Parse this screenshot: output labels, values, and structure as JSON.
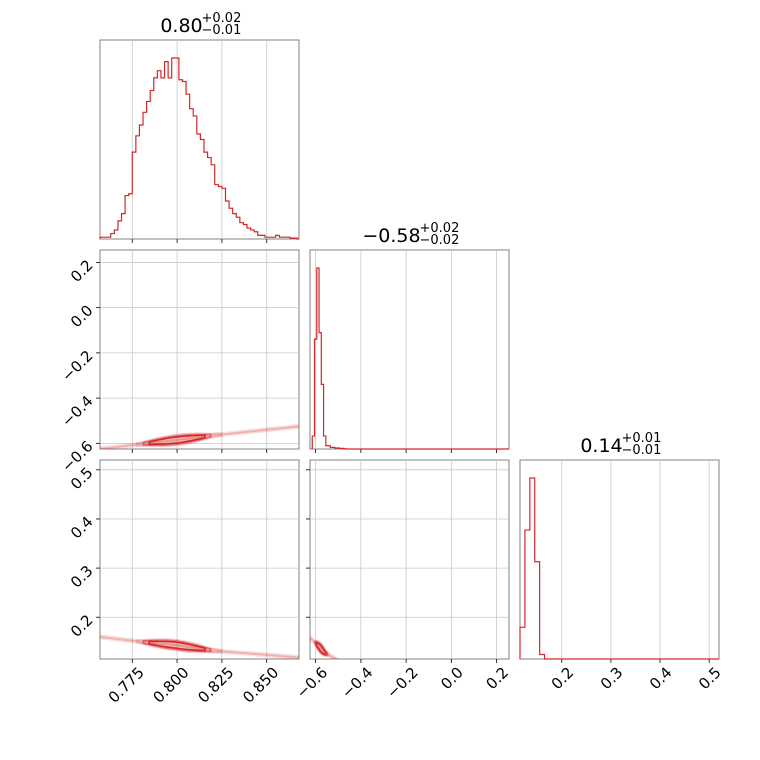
{
  "chart_data": {
    "type": "corner",
    "series_color": "#d62728",
    "grid": true,
    "parameters": [
      {
        "value": "0.80",
        "plus": "+0.02",
        "minus": "−0.01",
        "range": [
          0.757,
          0.868
        ]
      },
      {
        "value": "−0.58",
        "plus": "+0.02",
        "minus": "−0.02",
        "range": [
          -0.625,
          0.255
        ]
      },
      {
        "value": "0.14",
        "plus": "+0.01",
        "minus": "−0.01",
        "range": [
          0.115,
          0.52
        ]
      }
    ],
    "ticks": {
      "p0": {
        "values": [
          0.775,
          0.8,
          0.825,
          0.85
        ],
        "labels": [
          "0.775",
          "0.800",
          "0.825",
          "0.850"
        ]
      },
      "p1": {
        "values": [
          -0.6,
          -0.4,
          -0.2,
          0.0,
          0.2
        ],
        "labels": [
          "−0.6",
          "−0.4",
          "−0.2",
          "0.0",
          "0.2"
        ]
      },
      "p2": {
        "values": [
          0.2,
          0.3,
          0.4,
          0.5
        ],
        "labels": [
          "0.2",
          "0.3",
          "0.4",
          "0.5"
        ]
      }
    },
    "histograms": [
      {
        "param": 0,
        "edges": [
          0.757,
          0.759,
          0.761,
          0.763,
          0.765,
          0.767,
          0.769,
          0.771,
          0.773,
          0.775,
          0.777,
          0.779,
          0.781,
          0.783,
          0.785,
          0.787,
          0.789,
          0.791,
          0.793,
          0.795,
          0.797,
          0.799,
          0.801,
          0.803,
          0.805,
          0.807,
          0.809,
          0.811,
          0.813,
          0.815,
          0.817,
          0.819,
          0.821,
          0.823,
          0.825,
          0.827,
          0.829,
          0.831,
          0.833,
          0.835,
          0.837,
          0.839,
          0.841,
          0.843,
          0.845,
          0.847,
          0.849,
          0.851,
          0.853,
          0.855,
          0.857,
          0.859,
          0.861,
          0.863,
          0.865,
          0.867
        ],
        "counts": [
          1,
          1,
          1,
          3,
          5,
          10,
          14,
          24,
          25,
          48,
          57,
          63,
          70,
          76,
          82,
          89,
          93,
          89,
          98,
          89,
          100,
          100,
          88,
          87,
          80,
          72,
          68,
          58,
          55,
          48,
          45,
          41,
          30,
          29,
          28,
          21,
          17,
          14,
          12,
          9,
          8,
          6,
          5,
          4,
          2,
          2,
          1,
          1,
          1,
          2,
          1,
          1,
          1,
          0.5,
          0.5
        ]
      },
      {
        "param": 1,
        "edges": [
          -0.615,
          -0.605,
          -0.595,
          -0.585,
          -0.575,
          -0.565,
          -0.555,
          -0.545,
          -0.535,
          -0.525,
          -0.515,
          -0.505,
          -0.495,
          -0.485,
          -0.475,
          -0.465
        ],
        "counts": [
          4,
          34,
          56,
          36,
          20,
          4,
          1,
          1,
          0.5,
          0.5,
          0.3,
          0.3,
          0.2,
          0.2,
          0.1
        ]
      },
      {
        "param": 2,
        "edges": [
          0.115,
          0.125,
          0.135,
          0.145,
          0.155,
          0.165
        ],
        "counts": [
          14,
          57,
          80,
          43,
          2
        ]
      }
    ],
    "contours_2d": [
      {
        "x_param": 0,
        "y_param": 1,
        "trend": [
          [
            0.757,
            -0.625
          ],
          [
            0.78,
            -0.603
          ],
          [
            0.8,
            -0.585
          ],
          [
            0.82,
            -0.565
          ],
          [
            0.868,
            -0.525
          ]
        ]
      },
      {
        "x_param": 0,
        "y_param": 2,
        "trend": [
          [
            0.757,
            0.16
          ],
          [
            0.78,
            0.15
          ],
          [
            0.8,
            0.143
          ],
          [
            0.82,
            0.132
          ],
          [
            0.868,
            0.118
          ]
        ]
      },
      {
        "x_param": 1,
        "y_param": 2,
        "trend": [
          [
            -0.625,
            0.158
          ],
          [
            -0.595,
            0.145
          ],
          [
            -0.56,
            0.128
          ],
          [
            -0.51,
            0.115
          ]
        ]
      }
    ]
  }
}
